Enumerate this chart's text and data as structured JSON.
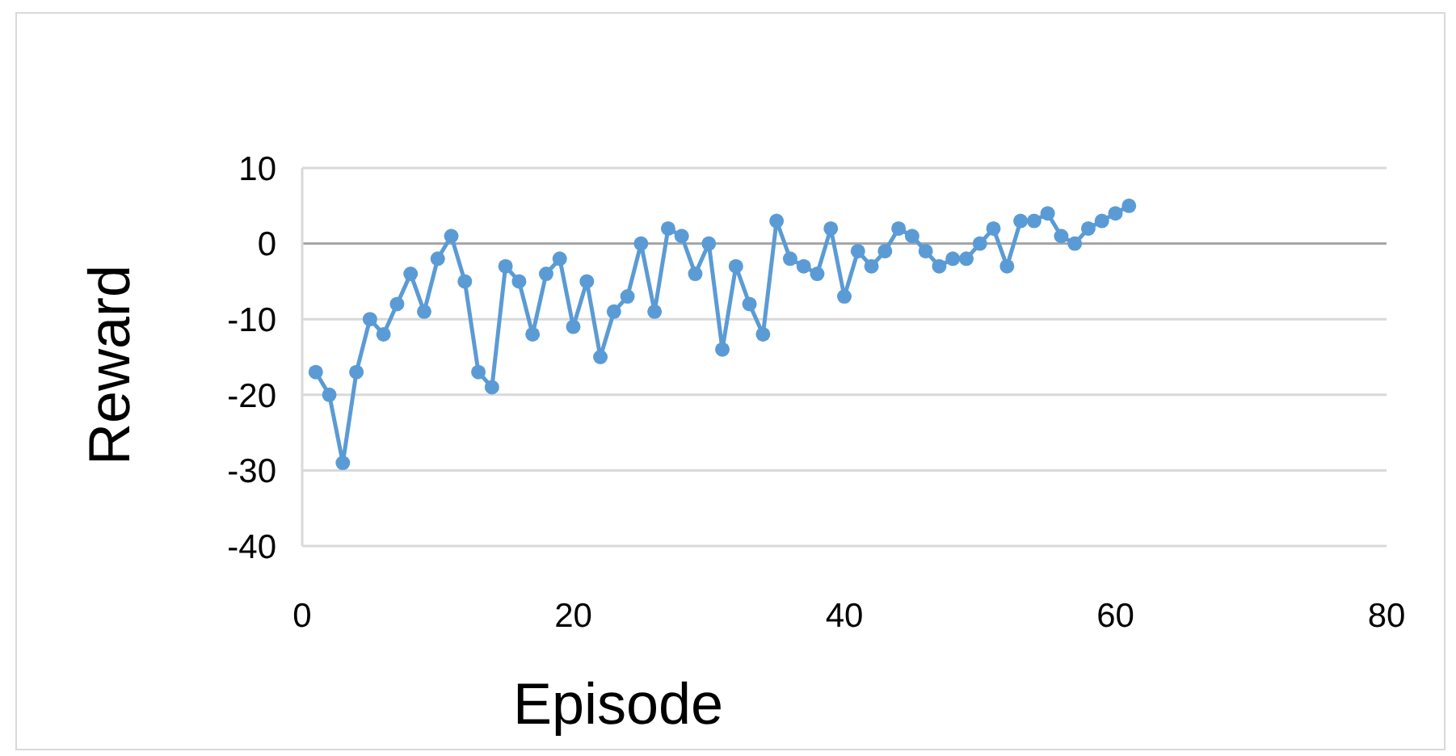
{
  "chart_data": {
    "type": "line",
    "xlabel": "Episode",
    "ylabel": "Reward",
    "xlim": [
      0,
      80
    ],
    "xticks": [
      0,
      20,
      40,
      60,
      80
    ],
    "ylim": [
      -40,
      10
    ],
    "yticks": [
      -40,
      -30,
      -20,
      -10,
      0,
      10
    ],
    "grid": "y",
    "marker": "circle",
    "line_style": "solid",
    "x": [
      1,
      2,
      3,
      4,
      5,
      6,
      7,
      8,
      9,
      10,
      11,
      12,
      13,
      14,
      15,
      16,
      17,
      18,
      19,
      20,
      21,
      22,
      23,
      24,
      25,
      26,
      27,
      28,
      29,
      30,
      31,
      32,
      33,
      34,
      35,
      36,
      37,
      38,
      39,
      40,
      41,
      42,
      43,
      44,
      45,
      46,
      47,
      48,
      49,
      50,
      51,
      52,
      53,
      54,
      55,
      56,
      57,
      58,
      59,
      60,
      61
    ],
    "series": [
      {
        "color": "#5b9bd5",
        "values": [
          -17,
          -20,
          -29,
          -17,
          -10,
          -12,
          -8,
          -4,
          -9,
          -2,
          1,
          -5,
          -17,
          -19,
          -3,
          -5,
          -12,
          -4,
          -2,
          -11,
          -5,
          -15,
          -9,
          -7,
          0,
          -9,
          2,
          1,
          -4,
          0,
          -14,
          -3,
          -8,
          -12,
          3,
          -2,
          -3,
          -4,
          2,
          -7,
          -1,
          -3,
          -1,
          2,
          1,
          -1,
          -3,
          -2,
          -2,
          0,
          2,
          -3,
          3,
          3,
          4,
          1,
          0,
          2,
          3,
          4,
          5
        ]
      }
    ]
  }
}
